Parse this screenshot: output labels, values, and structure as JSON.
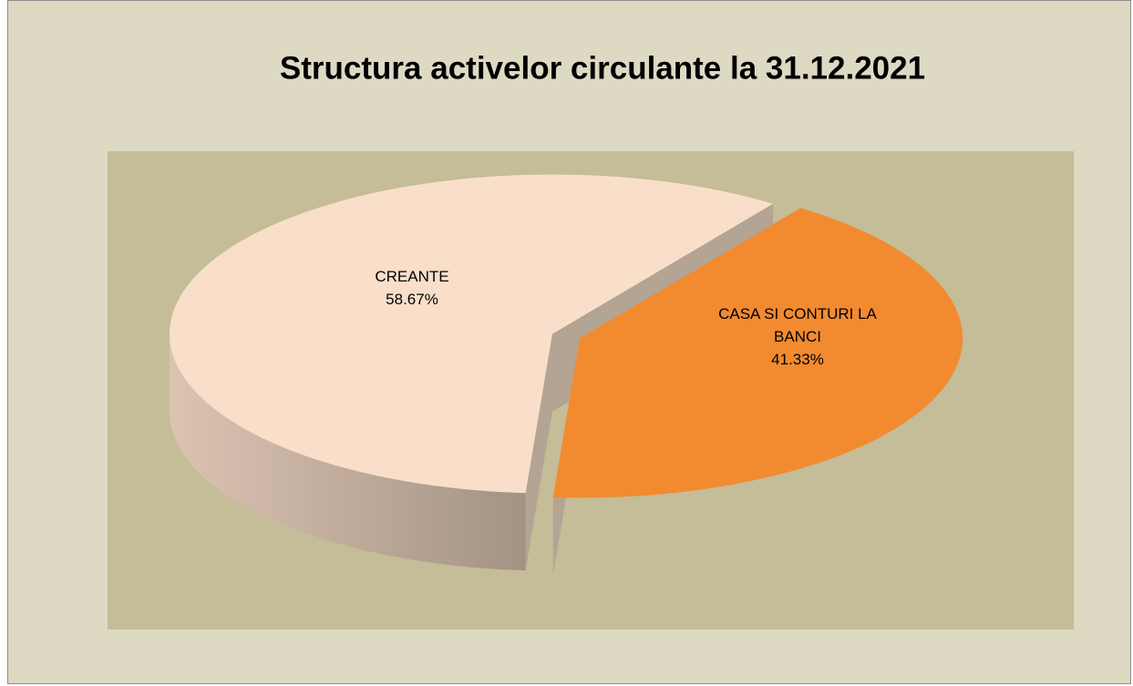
{
  "chart_data": {
    "type": "pie",
    "title": "Structura activelor circulante la 31.12.2021",
    "categories": [
      "CREANTE",
      "CASA SI CONTURI LA BANCI"
    ],
    "values": [
      58.67,
      41.33
    ],
    "value_labels": [
      "58.67%",
      "41.33%"
    ],
    "colors": [
      "#f9dfca",
      "#f28a30"
    ]
  }
}
